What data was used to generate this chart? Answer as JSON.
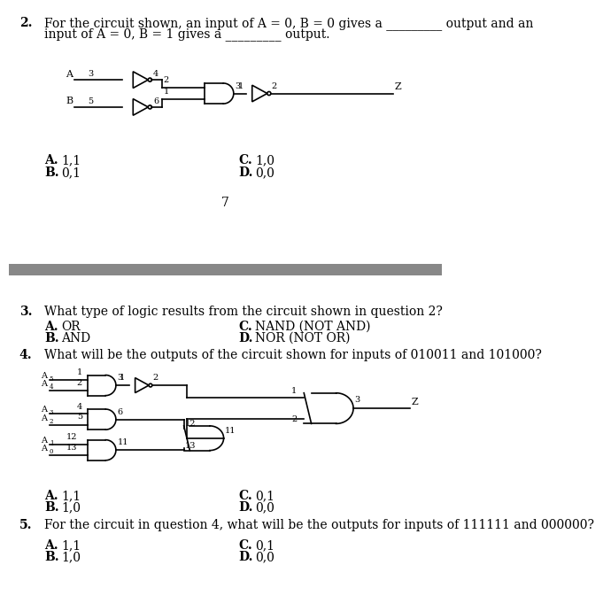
{
  "bg_color": "#ffffff",
  "separator_color": "#888888",
  "q2": {
    "number": "2.",
    "question_line1": "For the circuit shown, an input of A = 0, B = 0 gives a _________ output and an",
    "question_line2": "input of A = 0, B = 1 gives a _________ output.",
    "choices_left": [
      [
        "A.",
        "1,1"
      ],
      [
        "B.",
        "0,1"
      ]
    ],
    "choices_right": [
      [
        "C.",
        "1,0"
      ],
      [
        "D.",
        "0,0"
      ]
    ],
    "page_num": "7"
  },
  "q3": {
    "number": "3.",
    "question": "What type of logic results from the circuit shown in question 2?",
    "choices_left": [
      [
        "A.",
        "OR"
      ],
      [
        "B.",
        "AND"
      ]
    ],
    "choices_right": [
      [
        "C.",
        "NAND (NOT AND)"
      ],
      [
        "D.",
        "NOR (NOT OR)"
      ]
    ]
  },
  "q4": {
    "number": "4.",
    "question": "What will be the outputs of the circuit shown for inputs of 010011 and 101000?",
    "choices_left": [
      [
        "A.",
        "1,1"
      ],
      [
        "B.",
        "1,0"
      ]
    ],
    "choices_right": [
      [
        "C.",
        "0,1"
      ],
      [
        "D.",
        "0,0"
      ]
    ]
  },
  "q5": {
    "number": "5.",
    "question": "For the circuit in question 4, what will be the outputs for inputs of 111111 and 000000?",
    "choices_left": [
      [
        "A.",
        "1,1"
      ],
      [
        "B.",
        "1,0"
      ]
    ],
    "choices_right": [
      [
        "C.",
        "0,1"
      ],
      [
        "D.",
        "0,0"
      ]
    ]
  },
  "font_size_body": 10,
  "font_size_small": 7,
  "font_size_tiny": 6
}
